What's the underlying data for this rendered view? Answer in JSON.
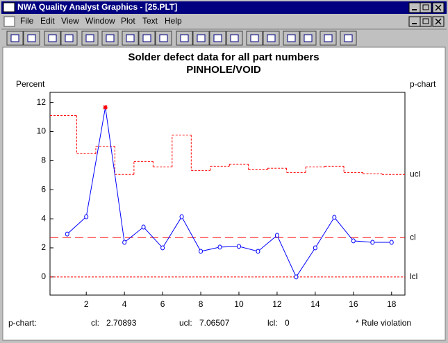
{
  "window": {
    "title": "NWA Quality Analyst Graphics - [25.PLT]",
    "menu": [
      "File",
      "Edit",
      "View",
      "Window",
      "Plot",
      "Text",
      "Help"
    ]
  },
  "chart_data": {
    "type": "line",
    "title": "Solder defect data for all part numbers",
    "subtitle": "PINHOLE/VOID",
    "y_label": "Percent",
    "right_label": "p-chart",
    "x": [
      1,
      2,
      3,
      4,
      5,
      6,
      7,
      8,
      9,
      10,
      11,
      12,
      13,
      14,
      15,
      16,
      17,
      18
    ],
    "series": [
      {
        "color": "#0000ff",
        "values": [
          2.95,
          4.14,
          11.67,
          2.38,
          3.43,
          2.0,
          4.14,
          1.76,
          2.05,
          2.1,
          1.76,
          2.86,
          0,
          2.0,
          4.1,
          2.48,
          2.38,
          2.38
        ]
      }
    ],
    "ucl_values": [
      11.1,
      8.48,
      9.0,
      7.05,
      7.95,
      7.57,
      9.76,
      7.33,
      7.62,
      7.76,
      7.38,
      7.48,
      7.19,
      7.57,
      7.62,
      7.19,
      7.1,
      7.05
    ],
    "limit_color": "#ff0000",
    "violation_color": "#ff0000",
    "violation_x": [
      3
    ],
    "cl": 2.70893,
    "ucl": 7.06507,
    "lcl": 0,
    "limit_labels": [
      "ucl",
      "cl",
      "lcl"
    ],
    "xlim": [
      0.1,
      18.7
    ],
    "ylim": [
      -1.25,
      12.7
    ],
    "xticks": [
      2,
      4,
      6,
      8,
      10,
      12,
      14,
      16,
      18
    ],
    "yticks": [
      0,
      2,
      4,
      6,
      8,
      10,
      12
    ],
    "footer": {
      "chart_label": "p-chart:",
      "cl_label": "cl:",
      "ucl_label": "ucl:",
      "lcl_label": "lcl:",
      "note": "* Rule violation"
    }
  }
}
